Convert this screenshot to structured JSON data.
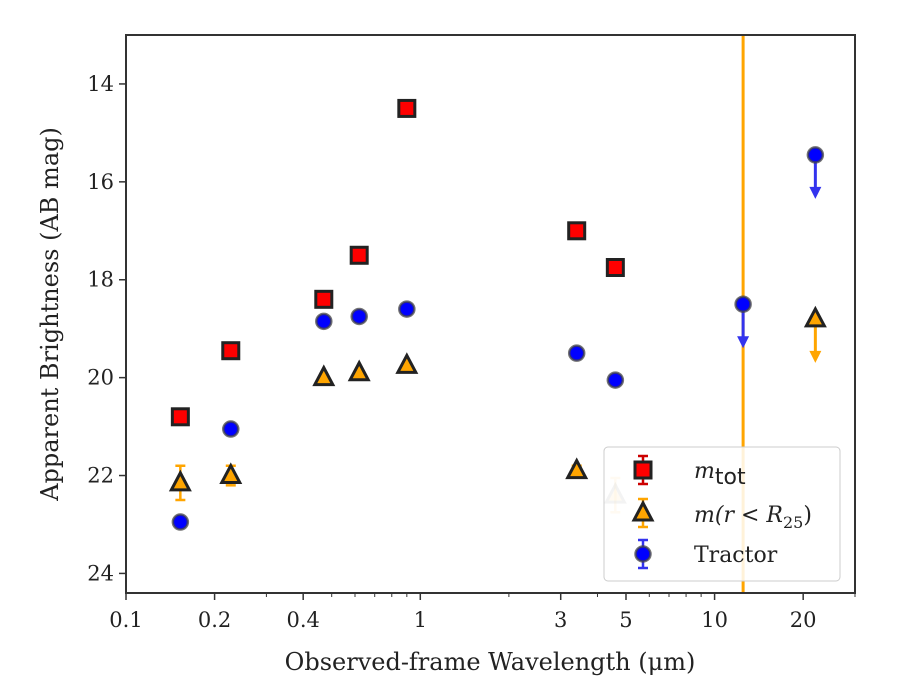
{
  "chart_data": {
    "type": "scatter",
    "xlabel": "Observed-frame Wavelength (μm)",
    "ylabel": "Apparent Brightness (AB mag)",
    "xscale": "log",
    "xlim": [
      0.1,
      30
    ],
    "ylim": [
      24.4,
      13.0
    ],
    "y_inverted": true,
    "x_ticks": [
      0.1,
      0.2,
      0.4,
      1,
      3,
      5,
      10,
      20
    ],
    "x_tick_labels": [
      "0.1",
      "0.2",
      "0.4",
      "1",
      "3",
      "5",
      "10",
      "20"
    ],
    "y_ticks": [
      14,
      16,
      18,
      20,
      22,
      24
    ],
    "y_tick_labels": [
      "14",
      "16",
      "18",
      "20",
      "22",
      "24"
    ],
    "legend_position": "lower-right",
    "vertical_line": {
      "x": 12.5,
      "color": "#ffa500"
    },
    "series": [
      {
        "name": "m_tot",
        "legend_label": {
          "main": "m",
          "sub": "tot"
        },
        "marker": "square",
        "color": "#ff0000",
        "edge": "#222222",
        "points": [
          {
            "x": 0.153,
            "y": 20.8
          },
          {
            "x": 0.227,
            "y": 19.45
          },
          {
            "x": 0.47,
            "y": 18.4
          },
          {
            "x": 0.62,
            "y": 17.5
          },
          {
            "x": 0.9,
            "y": 14.5
          },
          {
            "x": 3.4,
            "y": 17.0
          },
          {
            "x": 4.6,
            "y": 17.75
          }
        ]
      },
      {
        "name": "m(r<R25)",
        "legend_label": {
          "main": "m(r < R",
          "sub": "25",
          "tail": ")"
        },
        "marker": "triangle",
        "color": "#ffa500",
        "edge": "#222222",
        "points": [
          {
            "x": 0.153,
            "y": 22.15,
            "yerr": 0.35
          },
          {
            "x": 0.227,
            "y": 22.0,
            "yerr": 0.2
          },
          {
            "x": 0.47,
            "y": 20.0
          },
          {
            "x": 0.62,
            "y": 19.9
          },
          {
            "x": 0.9,
            "y": 19.75
          },
          {
            "x": 3.4,
            "y": 21.9,
            "yerr": 0.1
          },
          {
            "x": 4.6,
            "y": 22.4,
            "yerr": 0.35,
            "faded": true
          },
          {
            "x": 22,
            "y": 18.8,
            "upper_limit": true
          }
        ]
      },
      {
        "name": "Tractor",
        "legend_label": {
          "main": "Tractor"
        },
        "marker": "circle",
        "color": "#0000ff",
        "edge": "#444444",
        "points": [
          {
            "x": 0.153,
            "y": 22.95
          },
          {
            "x": 0.227,
            "y": 21.05
          },
          {
            "x": 0.47,
            "y": 18.85
          },
          {
            "x": 0.62,
            "y": 18.75
          },
          {
            "x": 0.9,
            "y": 18.6
          },
          {
            "x": 3.4,
            "y": 19.5
          },
          {
            "x": 4.6,
            "y": 20.05
          },
          {
            "x": 12.5,
            "y": 18.5,
            "upper_limit": true
          },
          {
            "x": 22,
            "y": 15.45,
            "upper_limit": true
          }
        ]
      }
    ]
  }
}
